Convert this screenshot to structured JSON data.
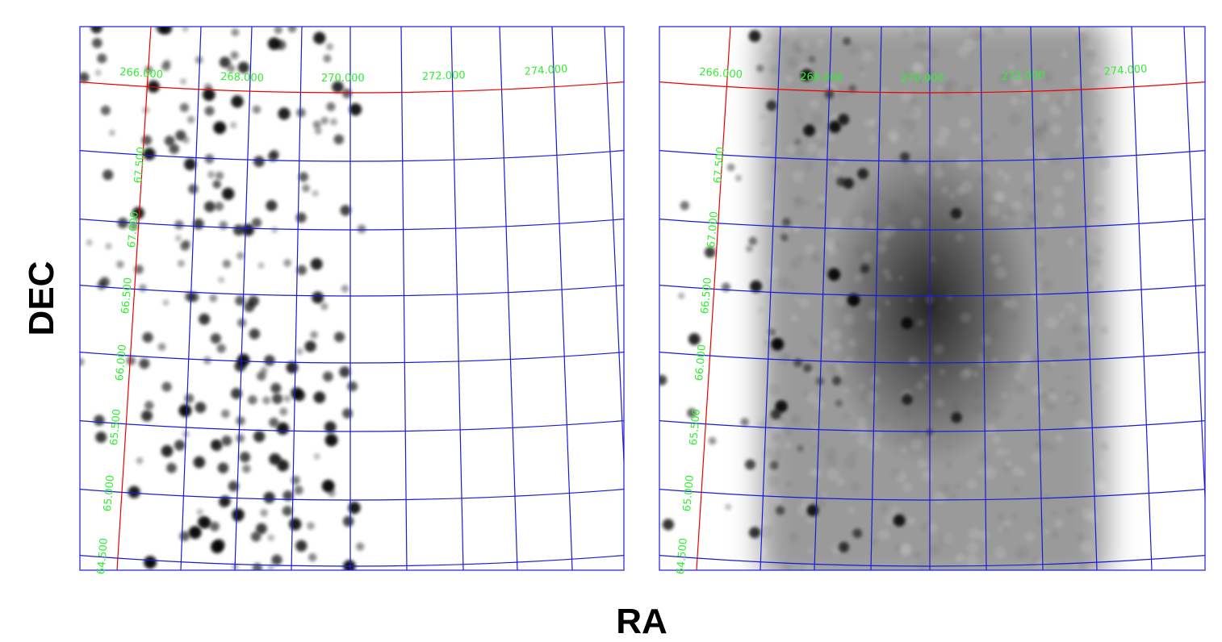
{
  "x_label": "RA",
  "y_label": "DEC",
  "panels": [
    {
      "ra_labels": [
        "266.000",
        "268.000",
        "270.000",
        "272.000",
        "274.000"
      ],
      "dec_labels": [
        "64.500",
        "65.000",
        "65.500",
        "66.000",
        "66.500",
        "67.000",
        "67.500"
      ]
    },
    {
      "ra_labels": [
        "266.000",
        "268.000",
        "270.000",
        "272.000",
        "274.000"
      ],
      "dec_labels": [
        "64.500",
        "65.000",
        "65.500",
        "66.000",
        "66.500",
        "67.000",
        "67.500"
      ]
    }
  ]
}
